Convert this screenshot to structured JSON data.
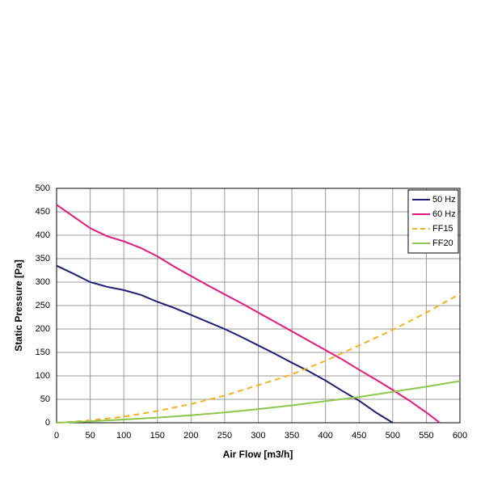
{
  "chart_data": {
    "type": "line",
    "x_label": "Air Flow [m3/h]",
    "y_label": "Static Pressure [Pa]",
    "xlim": [
      0,
      600
    ],
    "xticks": [
      0,
      50,
      100,
      150,
      200,
      250,
      300,
      350,
      400,
      450,
      500,
      550,
      600
    ],
    "ylim": [
      0,
      500
    ],
    "yticks": [
      0,
      50,
      100,
      150,
      200,
      250,
      300,
      350,
      400,
      450,
      500
    ],
    "grid": true,
    "legend": "top-right",
    "series": [
      {
        "name": "50 Hz",
        "color": "#1e1e78",
        "line_style": "solid",
        "x": [
          0,
          25,
          50,
          75,
          100,
          125,
          150,
          175,
          200,
          225,
          250,
          275,
          300,
          325,
          350,
          375,
          400,
          425,
          450,
          475,
          500
        ],
        "values": [
          335,
          318,
          300,
          290,
          283,
          273,
          258,
          245,
          230,
          215,
          200,
          183,
          165,
          147,
          128,
          110,
          90,
          68,
          47,
          22,
          0
        ]
      },
      {
        "name": "60 Hz",
        "color": "#e8177d",
        "line_style": "solid",
        "x": [
          0,
          25,
          50,
          75,
          100,
          125,
          150,
          175,
          200,
          225,
          250,
          275,
          300,
          325,
          350,
          375,
          400,
          425,
          450,
          475,
          500,
          525,
          550,
          570
        ],
        "values": [
          465,
          440,
          415,
          398,
          387,
          373,
          355,
          333,
          313,
          293,
          274,
          255,
          235,
          215,
          195,
          175,
          155,
          135,
          113,
          92,
          70,
          47,
          22,
          0
        ]
      },
      {
        "name": "FF15",
        "color": "#f5b21a",
        "line_style": "dashed",
        "x": [
          0,
          50,
          100,
          150,
          200,
          250,
          300,
          350,
          400,
          450,
          500,
          550,
          600
        ],
        "values": [
          0,
          5,
          13,
          25,
          40,
          58,
          80,
          103,
          132,
          165,
          198,
          235,
          275
        ]
      },
      {
        "name": "FF20",
        "color": "#8cc84b",
        "line_style": "solid",
        "x": [
          0,
          50,
          100,
          150,
          200,
          250,
          300,
          350,
          400,
          450,
          500,
          550,
          600
        ],
        "values": [
          0,
          3,
          7,
          11,
          16,
          22,
          29,
          37,
          46,
          55,
          66,
          77,
          89
        ]
      }
    ]
  }
}
